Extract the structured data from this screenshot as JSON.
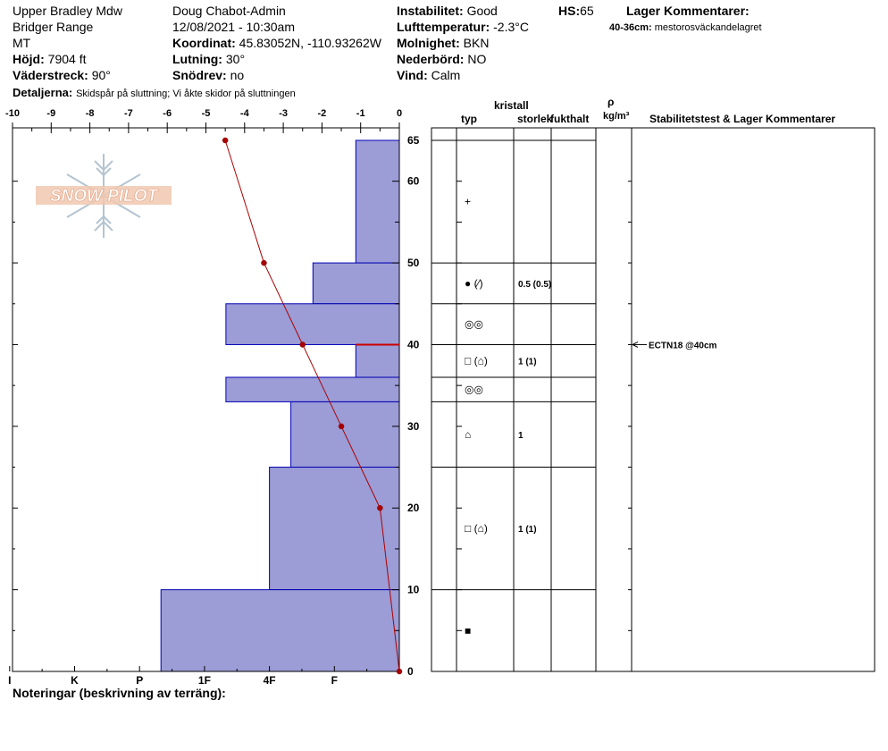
{
  "header": {
    "location": "Upper Bradley Mdw",
    "range": "Bridger Range",
    "state": "MT",
    "elevation_label": "Höjd:",
    "elevation_value": "7904 ft",
    "aspect_label": "Väderstreck:",
    "aspect_value": "90°",
    "details_label": "Detaljerna:",
    "details_value": "Skidspår på sluttning;  Vi åkte skidor på sluttningen",
    "observer": "Doug Chabot-Admin",
    "datetime": "12/08/2021 - 10:30am",
    "coord_label": "Koordinat:",
    "coord_value": "45.83052N, -110.93262W",
    "slope_label": "Lutning:",
    "slope_value": "30°",
    "wind_loading_label": "Snödrev:",
    "wind_loading_value": "no",
    "stability_label": "Instabilitet:",
    "stability_value": "Good",
    "airtemp_label": "Lufttemperatur:",
    "airtemp_value": "-2.3°C",
    "sky_label": "Molnighet:",
    "sky_value": "BKN",
    "precip_label": "Nederbörd:",
    "precip_value": "NO",
    "wind_label": "Vind:",
    "wind_value": "Calm",
    "hs_label": "HS:",
    "hs_value": "65",
    "layer_comments_label": "Lager Kommentarer:",
    "layer_comment_depth": "40-36cm:",
    "layer_comment_text": "mestorosväckandelagret"
  },
  "logo": {
    "text": "SNOW PILOT"
  },
  "table": {
    "headers": {
      "crystal": "kristall",
      "type": "typ",
      "size": "storlek",
      "moisture": "fukthalt",
      "rho": "ρ",
      "density_unit": "kg/m³",
      "tests": "Stabilitetstest & Lager Kommentarer"
    },
    "rows": [
      {
        "top": 65,
        "bottom": 50,
        "symbol": "+",
        "size": ""
      },
      {
        "top": 50,
        "bottom": 45,
        "symbol": "● (⁄)",
        "size": "0.5 (0.5)"
      },
      {
        "top": 45,
        "bottom": 40,
        "symbol": "◎◎",
        "size": ""
      },
      {
        "top": 40,
        "bottom": 36,
        "symbol": "□ (⌂)",
        "size": "1 (1)"
      },
      {
        "top": 36,
        "bottom": 33,
        "symbol": "◎◎",
        "size": ""
      },
      {
        "top": 33,
        "bottom": 25,
        "symbol": "⌂",
        "size": "1"
      },
      {
        "top": 25,
        "bottom": 10,
        "symbol": "□ (⌂)",
        "size": "1 (1)"
      },
      {
        "top": 10,
        "bottom": 0,
        "symbol": "■",
        "size": ""
      }
    ],
    "test_result": {
      "depth": 40,
      "text": "ECTN18 @40cm"
    }
  },
  "notes_label": "Noteringar (beskrivning av terräng):",
  "colors": {
    "hardness_fill": "#9c9cd6",
    "hardness_stroke": "#0000b4",
    "temperature_line": "#aa0000",
    "weak_layer": "#cc0000"
  },
  "chart_data": {
    "type": "bar",
    "title": "",
    "temperature_axis": {
      "ticks": [
        -10,
        -9,
        -8,
        -7,
        -6,
        -5,
        -4,
        -3,
        -2,
        -1,
        0
      ],
      "range": [
        -10,
        0
      ]
    },
    "depth_axis": {
      "range": [
        0,
        65
      ],
      "ticks": [
        0,
        10,
        20,
        30,
        40,
        50,
        60,
        65
      ]
    },
    "hardness_axis": {
      "ticks": [
        "I",
        "K",
        "P",
        "1F",
        "4F",
        "F"
      ],
      "tick_values": [
        6,
        5,
        4,
        3,
        2,
        1
      ]
    },
    "hardness_layers": [
      {
        "top": 65,
        "bottom": 50,
        "hardness": 0.67
      },
      {
        "top": 50,
        "bottom": 45,
        "hardness": 1.33
      },
      {
        "top": 45,
        "bottom": 40,
        "hardness": 2.67
      },
      {
        "top": 40,
        "bottom": 36,
        "hardness": 0.67
      },
      {
        "top": 36,
        "bottom": 33,
        "hardness": 2.67
      },
      {
        "top": 33,
        "bottom": 25,
        "hardness": 1.67
      },
      {
        "top": 25,
        "bottom": 10,
        "hardness": 2.0
      },
      {
        "top": 10,
        "bottom": 0,
        "hardness": 3.67
      }
    ],
    "temperature_profile": [
      {
        "depth": 65,
        "temp": -4.5
      },
      {
        "depth": 50,
        "temp": -3.5
      },
      {
        "depth": 40,
        "temp": -2.5
      },
      {
        "depth": 30,
        "temp": -1.5
      },
      {
        "depth": 20,
        "temp": -0.5
      },
      {
        "depth": 0,
        "temp": 0
      }
    ],
    "weak_layer_depth": 40
  }
}
